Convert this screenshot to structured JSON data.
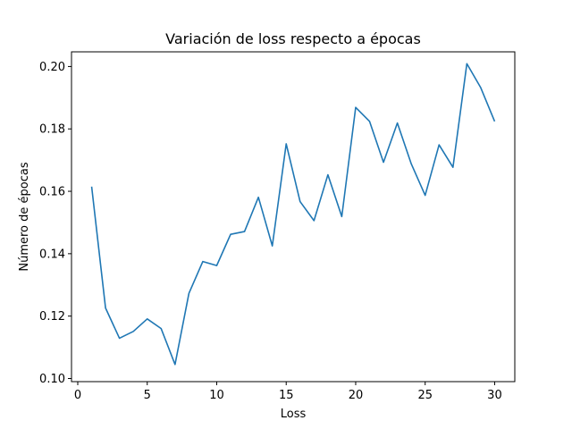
{
  "chart_data": {
    "type": "line",
    "title": "Variación de loss respecto a épocas",
    "xlabel": "Loss",
    "ylabel": "Número de épocas",
    "xlim": [
      -0.45,
      31.45
    ],
    "ylim": [
      0.099,
      0.2047
    ],
    "xticks": [
      0,
      5,
      10,
      15,
      20,
      25,
      30
    ],
    "yticks": [
      0.1,
      0.12,
      0.14,
      0.16,
      0.18,
      0.2
    ],
    "grid": false,
    "line_color": "#1f77b4",
    "series": [
      {
        "x": [
          1,
          2,
          3,
          4,
          5,
          6,
          7,
          8,
          9,
          10,
          11,
          12,
          13,
          14,
          15,
          16,
          17,
          18,
          19,
          20,
          21,
          22,
          23,
          24,
          25,
          26,
          27,
          28,
          29,
          30
        ],
        "values": [
          0.1615,
          0.1226,
          0.1129,
          0.1151,
          0.1191,
          0.116,
          0.1045,
          0.1273,
          0.1375,
          0.1362,
          0.1462,
          0.1471,
          0.1581,
          0.1425,
          0.1752,
          0.1567,
          0.1506,
          0.1653,
          0.1519,
          0.1869,
          0.1824,
          0.1693,
          0.1819,
          0.1688,
          0.1587,
          0.1749,
          0.1677,
          0.2009,
          0.1932,
          0.1824
        ]
      }
    ]
  }
}
